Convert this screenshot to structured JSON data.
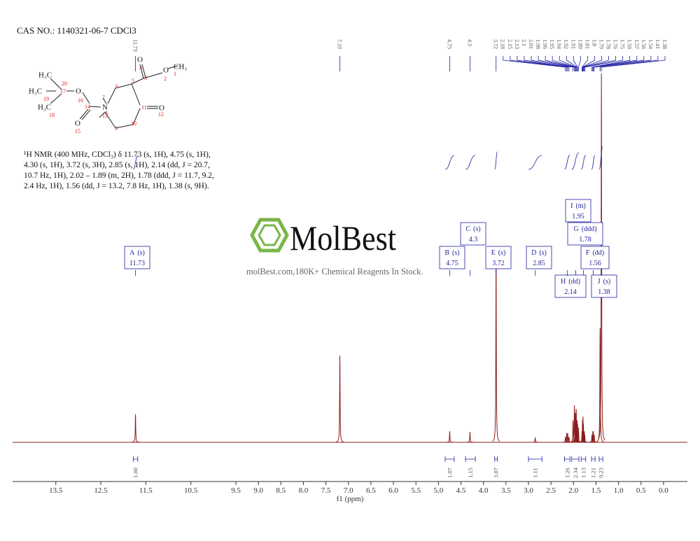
{
  "header": {
    "title": "CAS NO.: 1140321-06-7 CDCl3"
  },
  "description": "¹H NMR (400 MHz, CDCl₃) δ 11.73 (s, 1H), 4.75 (s, 1H), 4.30 (s, 1H), 3.72 (s, 3H), 2.85 (s, 1H), 2.14 (dd, J = 20.7, 10.7 Hz, 1H), 2.02 – 1.89 (m, 2H), 1.78 (ddd, J = 11.7, 9.2, 2.4 Hz, 1H), 1.56 (dd, J = 13.2, 7.8 Hz, 1H), 1.38 (s, 9H).",
  "structure": {
    "atoms": [
      "H₃C",
      "20",
      "H₃C",
      "17",
      "O",
      "16",
      "19",
      "H₃C",
      "18",
      "14",
      "N",
      "13",
      "7",
      "6",
      "5",
      "3",
      "4",
      "O",
      "2",
      "O",
      "CH₃",
      "1",
      "11",
      "O",
      "12",
      "10",
      "9",
      "8",
      "O",
      "15"
    ]
  },
  "watermark": {
    "brand": "MolBest",
    "tagline": "molBest.com,180K+ Chemical Reagents In Stock."
  },
  "chart_data": {
    "type": "nmr",
    "color": "#8b1c1c",
    "label_color": "#1f1fa0",
    "xlabel": "f1 (ppm)",
    "xlim": [
      14.46,
      -0.53
    ],
    "xticks": [
      13.5,
      12.5,
      11.5,
      10.5,
      9.5,
      {
        "value": 9,
        "label": "9.0"
      },
      8.5,
      {
        "value": 8,
        "label": "8.0"
      },
      7.5,
      {
        "value": 7,
        "label": "7.0"
      },
      6.5,
      {
        "value": 6,
        "label": "6.0"
      },
      5.5,
      {
        "value": 5,
        "label": "5.0"
      },
      4.5,
      {
        "value": 4,
        "label": "4.0"
      },
      3.5,
      {
        "value": 3,
        "label": "3.0"
      },
      2.5,
      {
        "value": 2,
        "label": "2.0"
      },
      1.5,
      {
        "value": 1,
        "label": "1.0"
      },
      0.5,
      {
        "value": 0,
        "label": "0.0"
      }
    ],
    "x": [
      11.73,
      7.19,
      4.75,
      4.3,
      3.72,
      2.85,
      2.18,
      2.15,
      2.13,
      2.1,
      2.01,
      1.98,
      1.96,
      1.95,
      1.94,
      1.92,
      1.91,
      1.89,
      1.81,
      1.8,
      1.79,
      1.78,
      1.76,
      1.75,
      1.59,
      1.57,
      1.56,
      1.54,
      1.41,
      1.38
    ],
    "values": [
      7.6,
      23.5,
      3,
      2.8,
      51.6,
      1.3,
      1.5,
      2.5,
      2.5,
      1.5,
      6,
      10,
      8,
      7,
      9,
      6,
      5,
      4,
      3,
      6,
      7,
      5,
      3,
      2,
      2,
      3,
      3,
      2,
      31,
      100
    ],
    "peak_labels": [
      11.73,
      7.19,
      4.75,
      4.3,
      3.72,
      2.18,
      2.15,
      2.13,
      2.1,
      2.01,
      1.98,
      1.96,
      1.95,
      1.94,
      1.92,
      1.91,
      1.89,
      1.81,
      1.8,
      1.79,
      1.78,
      1.76,
      1.75,
      1.59,
      1.57,
      1.56,
      1.54,
      1.41,
      1.38
    ],
    "integrals": [
      {
        "range": [
          11.78,
          11.68
        ],
        "value": 1,
        "label": "1.00"
      },
      {
        "range": [
          4.85,
          4.65
        ],
        "value": 1.07
      },
      {
        "range": [
          4.4,
          4.18
        ],
        "value": 1.15
      },
      {
        "range": [
          3.75,
          3.69
        ],
        "value": 3.07
      },
      {
        "range": [
          3.0,
          2.7
        ],
        "value": 1.11
      },
      {
        "range": [
          2.2,
          2.08
        ],
        "value": 1.26
      },
      {
        "range": [
          2.04,
          1.88
        ],
        "value": 2.34
      },
      {
        "range": [
          1.83,
          1.73
        ],
        "value": 1.13
      },
      {
        "range": [
          1.6,
          1.52
        ],
        "value": 1.21
      },
      {
        "range": [
          1.43,
          1.35
        ],
        "value": 9.23
      }
    ],
    "multiplets": [
      {
        "name": "A",
        "multiplicity": "(s)",
        "shift": 11.73
      },
      {
        "name": "B",
        "multiplicity": "(s)",
        "shift": 4.75
      },
      {
        "name": "C",
        "multiplicity": "(s)",
        "shift": 4.3
      },
      {
        "name": "E",
        "multiplicity": "(s)",
        "shift": 3.72
      },
      {
        "name": "D",
        "multiplicity": "(s)",
        "shift": 2.85
      },
      {
        "name": "I",
        "multiplicity": "(m)",
        "shift": 1.95
      },
      {
        "name": "G",
        "multiplicity": "(ddd)",
        "shift": 1.78
      },
      {
        "name": "F",
        "multiplicity": "(dd)",
        "shift": 1.56
      },
      {
        "name": "H",
        "multiplicity": "(dd)",
        "shift": 2.14
      },
      {
        "name": "J",
        "multiplicity": "(s)",
        "shift": 1.38
      }
    ]
  }
}
